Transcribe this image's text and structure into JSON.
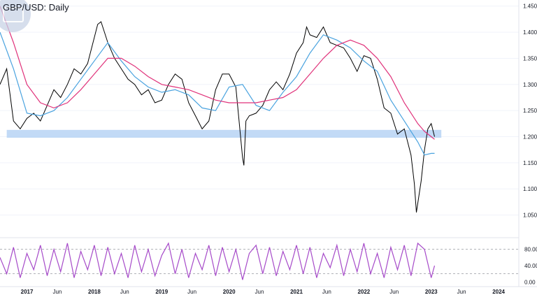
{
  "chart_data": {
    "type": "line",
    "title": "GBP/USD: Daily",
    "price_axis": {
      "ticks": [
        "1.450",
        "1.400",
        "1.350",
        "1.300",
        "1.250",
        "1.200",
        "1.150",
        "1.100",
        "1.050"
      ],
      "ylim": [
        1.02,
        1.455
      ]
    },
    "osc_axis": {
      "ticks": [
        "80.00",
        "40.00",
        "0.00"
      ],
      "ylim": [
        -3,
        100
      ],
      "levels": [
        80,
        20
      ]
    },
    "x_axis": {
      "labels": [
        "2017",
        "Jun",
        "2018",
        "Jun",
        "2019",
        "Jun",
        "2020",
        "Jun",
        "2021",
        "Jun",
        "2022",
        "Jun",
        "2023",
        "Jun",
        "2024"
      ],
      "positions": [
        2017.0,
        2017.45,
        2018.0,
        2018.45,
        2019.0,
        2019.45,
        2020.0,
        2020.45,
        2021.0,
        2021.45,
        2022.0,
        2022.45,
        2023.0,
        2023.45,
        2024.0
      ],
      "xlim": [
        2016.6,
        2024.3
      ]
    },
    "support_zone": {
      "from": 2016.7,
      "to": 2023.15,
      "low": 1.198,
      "high": 1.213
    },
    "series": [
      {
        "color": "#000000",
        "role": "price",
        "x": [
          2016.6,
          2016.7,
          2016.8,
          2016.9,
          2017.0,
          2017.1,
          2017.2,
          2017.3,
          2017.4,
          2017.5,
          2017.6,
          2017.7,
          2017.8,
          2017.9,
          2018.0,
          2018.05,
          2018.1,
          2018.15,
          2018.2,
          2018.3,
          2018.4,
          2018.5,
          2018.6,
          2018.7,
          2018.8,
          2018.9,
          2019.0,
          2019.1,
          2019.2,
          2019.3,
          2019.4,
          2019.5,
          2019.6,
          2019.7,
          2019.8,
          2019.9,
          2020.0,
          2020.1,
          2020.2,
          2020.22,
          2020.25,
          2020.3,
          2020.4,
          2020.5,
          2020.6,
          2020.7,
          2020.8,
          2020.9,
          2021.0,
          2021.1,
          2021.15,
          2021.2,
          2021.3,
          2021.4,
          2021.5,
          2021.6,
          2021.7,
          2021.8,
          2021.9,
          2022.0,
          2022.1,
          2022.2,
          2022.3,
          2022.4,
          2022.5,
          2022.6,
          2022.7,
          2022.75,
          2022.78,
          2022.85,
          2022.9,
          2022.95,
          2023.0,
          2023.05
        ],
        "y": [
          1.3,
          1.33,
          1.23,
          1.215,
          1.235,
          1.245,
          1.23,
          1.26,
          1.29,
          1.275,
          1.3,
          1.33,
          1.32,
          1.34,
          1.39,
          1.415,
          1.42,
          1.4,
          1.38,
          1.35,
          1.33,
          1.31,
          1.3,
          1.28,
          1.29,
          1.265,
          1.27,
          1.3,
          1.32,
          1.31,
          1.265,
          1.24,
          1.215,
          1.23,
          1.29,
          1.32,
          1.32,
          1.295,
          1.16,
          1.145,
          1.23,
          1.24,
          1.245,
          1.26,
          1.29,
          1.305,
          1.29,
          1.32,
          1.36,
          1.38,
          1.41,
          1.395,
          1.39,
          1.41,
          1.38,
          1.375,
          1.37,
          1.35,
          1.325,
          1.355,
          1.35,
          1.31,
          1.255,
          1.245,
          1.205,
          1.215,
          1.165,
          1.11,
          1.055,
          1.115,
          1.175,
          1.215,
          1.225,
          1.2
        ]
      },
      {
        "color": "#4aa3df",
        "role": "moving average",
        "x": [
          2016.6,
          2016.8,
          2017.0,
          2017.2,
          2017.4,
          2017.6,
          2017.8,
          2018.0,
          2018.2,
          2018.4,
          2018.6,
          2018.8,
          2019.0,
          2019.2,
          2019.4,
          2019.6,
          2019.8,
          2020.0,
          2020.2,
          2020.4,
          2020.6,
          2020.8,
          2021.0,
          2021.2,
          2021.4,
          2021.6,
          2021.8,
          2022.0,
          2022.2,
          2022.4,
          2022.6,
          2022.8,
          2022.9,
          2023.0,
          2023.05
        ],
        "y": [
          1.4,
          1.33,
          1.245,
          1.24,
          1.25,
          1.275,
          1.31,
          1.345,
          1.38,
          1.345,
          1.315,
          1.295,
          1.285,
          1.29,
          1.28,
          1.255,
          1.25,
          1.295,
          1.3,
          1.26,
          1.25,
          1.285,
          1.315,
          1.36,
          1.395,
          1.385,
          1.37,
          1.345,
          1.325,
          1.27,
          1.23,
          1.19,
          1.165,
          1.168,
          1.168
        ]
      },
      {
        "color": "#e0327a",
        "role": "moving average",
        "x": [
          2016.6,
          2016.8,
          2017.0,
          2017.2,
          2017.4,
          2017.6,
          2017.8,
          2018.0,
          2018.2,
          2018.4,
          2018.6,
          2018.8,
          2019.0,
          2019.2,
          2019.4,
          2019.6,
          2019.8,
          2020.0,
          2020.2,
          2020.4,
          2020.6,
          2020.8,
          2021.0,
          2021.2,
          2021.4,
          2021.6,
          2021.8,
          2022.0,
          2022.2,
          2022.4,
          2022.6,
          2022.8,
          2022.9,
          2023.0,
          2023.05
        ],
        "y": [
          1.45,
          1.38,
          1.3,
          1.265,
          1.255,
          1.265,
          1.29,
          1.32,
          1.35,
          1.35,
          1.335,
          1.315,
          1.3,
          1.295,
          1.29,
          1.28,
          1.27,
          1.265,
          1.265,
          1.265,
          1.27,
          1.275,
          1.29,
          1.32,
          1.35,
          1.375,
          1.385,
          1.375,
          1.35,
          1.315,
          1.265,
          1.225,
          1.21,
          1.2,
          1.195
        ]
      },
      {
        "color": "#a64ac9",
        "role": "oscillator",
        "x": [
          2016.6,
          2016.7,
          2016.8,
          2016.9,
          2017.0,
          2017.1,
          2017.2,
          2017.3,
          2017.4,
          2017.5,
          2017.6,
          2017.7,
          2017.8,
          2017.9,
          2018.0,
          2018.1,
          2018.2,
          2018.3,
          2018.4,
          2018.5,
          2018.6,
          2018.7,
          2018.8,
          2018.9,
          2019.0,
          2019.1,
          2019.2,
          2019.3,
          2019.4,
          2019.5,
          2019.6,
          2019.7,
          2019.8,
          2019.9,
          2020.0,
          2020.1,
          2020.2,
          2020.3,
          2020.4,
          2020.5,
          2020.6,
          2020.7,
          2020.8,
          2020.9,
          2021.0,
          2021.1,
          2021.2,
          2021.3,
          2021.4,
          2021.5,
          2021.6,
          2021.7,
          2021.8,
          2021.9,
          2022.0,
          2022.1,
          2022.2,
          2022.3,
          2022.4,
          2022.5,
          2022.6,
          2022.7,
          2022.8,
          2022.9,
          2023.0,
          2023.05
        ],
        "y": [
          60,
          20,
          85,
          10,
          70,
          30,
          90,
          15,
          80,
          25,
          95,
          10,
          75,
          30,
          90,
          15,
          85,
          20,
          70,
          10,
          90,
          25,
          80,
          15,
          65,
          95,
          20,
          80,
          10,
          70,
          30,
          90,
          15,
          85,
          25,
          80,
          5,
          70,
          90,
          20,
          85,
          15,
          75,
          30,
          90,
          20,
          85,
          10,
          70,
          35,
          90,
          15,
          80,
          25,
          95,
          20,
          70,
          10,
          85,
          30,
          90,
          15,
          95,
          80,
          10,
          40
        ]
      }
    ]
  }
}
